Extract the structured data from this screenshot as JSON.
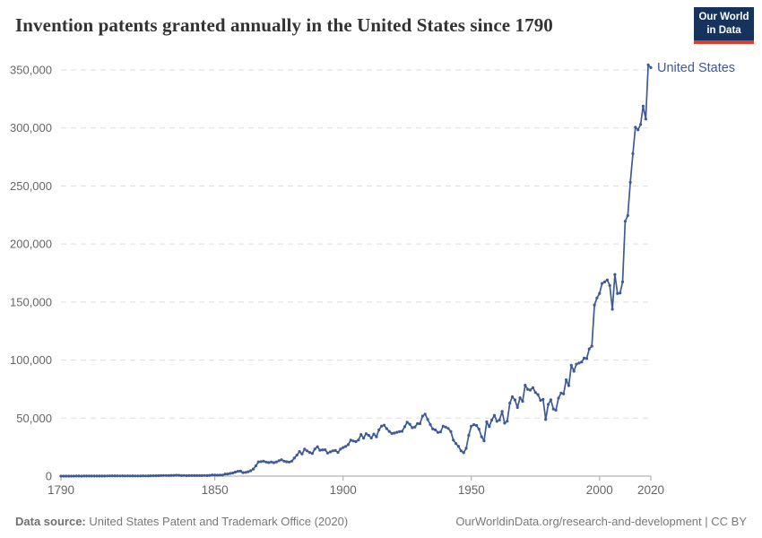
{
  "header": {
    "title": "Invention patents granted annually in the United States since 1790",
    "logo": {
      "line1": "Our World",
      "line2": "in Data",
      "bg_color": "#15335c",
      "accent_color": "#dc3e32"
    }
  },
  "footer": {
    "data_source_label": "Data source:",
    "data_source_text": " United States Patent and Trademark Office (2020)",
    "link_text": "OurWorldinData.org/research-and-development",
    "separator": " | ",
    "license": "CC BY"
  },
  "chart_data": {
    "type": "line",
    "title": "Invention patents granted annually in the United States since 1790",
    "xlabel": "",
    "ylabel": "",
    "xlim": [
      1790,
      2020
    ],
    "ylim": [
      0,
      350000
    ],
    "grid": "horizontal-dashed",
    "legend_position": "end-of-line-label",
    "x_ticks": [
      {
        "value": 1790,
        "label": "1790"
      },
      {
        "value": 1850,
        "label": "1850"
      },
      {
        "value": 1900,
        "label": "1900"
      },
      {
        "value": 1950,
        "label": "1950"
      },
      {
        "value": 2000,
        "label": "2000"
      },
      {
        "value": 2020,
        "label": "2020"
      }
    ],
    "y_ticks": [
      {
        "value": 0,
        "label": "0"
      },
      {
        "value": 50000,
        "label": "50,000"
      },
      {
        "value": 100000,
        "label": "100,000"
      },
      {
        "value": 150000,
        "label": "150,000"
      },
      {
        "value": 200000,
        "label": "200,000"
      },
      {
        "value": 250000,
        "label": "250,000"
      },
      {
        "value": 300000,
        "label": "300,000"
      },
      {
        "value": 350000,
        "label": "350,000"
      }
    ],
    "series": [
      {
        "name": "United States",
        "color": "#3d5a96",
        "x_start": 1790,
        "x_step": 1,
        "values": [
          3,
          33,
          11,
          20,
          22,
          12,
          44,
          51,
          28,
          44,
          41,
          44,
          65,
          97,
          84,
          57,
          63,
          99,
          158,
          203,
          223,
          215,
          238,
          181,
          210,
          173,
          206,
          174,
          222,
          156,
          155,
          168,
          200,
          173,
          228,
          304,
          323,
          331,
          368,
          447,
          544,
          573,
          474,
          586,
          630,
          752,
          702,
          426,
          514,
          404,
          458,
          490,
          488,
          493,
          478,
          473,
          566,
          495,
          583,
          984,
          883,
          752,
          885,
          844,
          1755,
          1881,
          2302,
          2674,
          3455,
          4160,
          4357,
          3020,
          3214,
          3773,
          4630,
          6088,
          8863,
          12277,
          12526,
          12931,
          12137,
          11659,
          12180,
          11616,
          12230,
          13291,
          14169,
          12920,
          12345,
          12165,
          12903,
          15500,
          18091,
          21162,
          19118,
          23285,
          21767,
          20403,
          19551,
          23324,
          25313,
          22312,
          22647,
          22750,
          19855,
          20856,
          21822,
          22067,
          20377,
          23278,
          24644,
          25546,
          27119,
          31029,
          30258,
          29775,
          31170,
          35859,
          32735,
          36561,
          35141,
          32856,
          36198,
          33917,
          39892,
          43118,
          43892,
          40935,
          38568,
          36797,
          37060,
          37798,
          38369,
          38616,
          42574,
          46432,
          44733,
          41717,
          42357,
          45267,
          45226,
          51756,
          53458,
          48774,
          44420,
          40618,
          39782,
          37683,
          38061,
          43073,
          42238,
          41109,
          38449,
          31054,
          28053,
          25695,
          21803,
          20191,
          23963,
          35131,
          43040,
          44326,
          43616,
          40468,
          33910,
          30432,
          46817,
          42744,
          48330,
          52408,
          47170,
          48368,
          55691,
          45679,
          47376,
          62857,
          68406,
          65652,
          59104,
          67559,
          64429,
          78317,
          74810,
          74143,
          76278,
          71994,
          70226,
          65269,
          66102,
          48854,
          61819,
          65771,
          57888,
          56860,
          67200,
          71661,
          70860,
          82952,
          77924,
          95537,
          90365,
          96511,
          97444,
          98342,
          101676,
          101419,
          109645,
          111984,
          147520,
          153485,
          157494,
          166035,
          167331,
          169023,
          164290,
          143806,
          173772,
          157282,
          157772,
          167349,
          219614,
          224505,
          253155,
          277835,
          300678,
          298407,
          303049,
          318829,
          307759,
          354430,
          351993
        ]
      }
    ],
    "colors": {
      "line": "#3d5a96",
      "grid": "#dddddd",
      "axis": "#a3a3a3",
      "tick_text": "#666666"
    }
  }
}
